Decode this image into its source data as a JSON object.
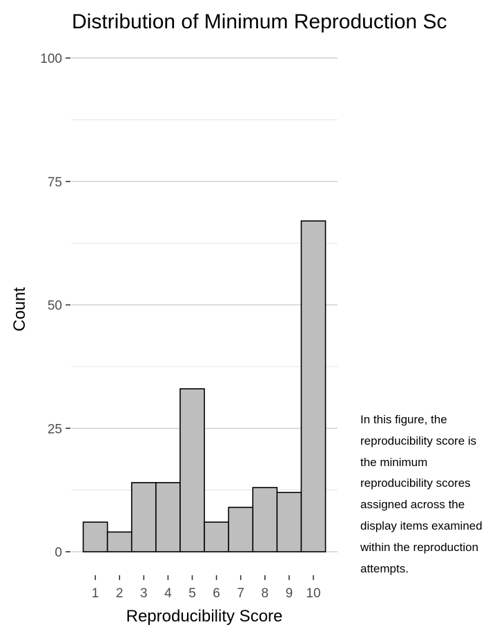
{
  "chart_data": {
    "type": "bar",
    "title": "Distribution of Minimum Reproduction Sc",
    "xlabel": "Reproducibility Score",
    "ylabel": "Count",
    "categories": [
      "1",
      "2",
      "3",
      "4",
      "5",
      "6",
      "7",
      "8",
      "9",
      "10"
    ],
    "values": [
      6,
      4,
      14,
      14,
      33,
      6,
      9,
      13,
      12,
      67
    ],
    "ylim": [
      0,
      100
    ],
    "yticks": [
      0,
      25,
      50,
      75,
      100
    ],
    "grid": true,
    "bar_color": "#bebebe",
    "bar_edge_color": "#000000"
  },
  "caption": "In this figure, the reproducibility score is the minimum reproducibility scores assigned across the display items examined within the reproduction attempts."
}
